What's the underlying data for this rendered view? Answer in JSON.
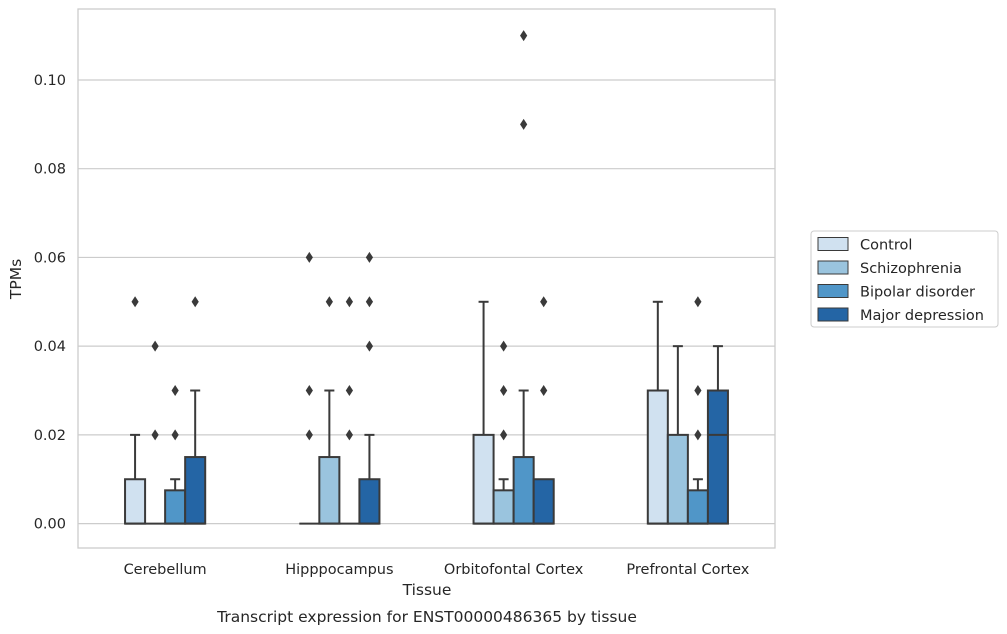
{
  "chart_data": {
    "type": "box",
    "title": "Transcript expression for ENST00000486365 by tissue",
    "xlabel": "Tissue",
    "ylabel": "TPMs",
    "ylim": [
      -0.0055,
      0.116
    ],
    "yticks": [
      "0.00",
      "0.02",
      "0.04",
      "0.06",
      "0.08",
      "0.10"
    ],
    "ytick_values": [
      0,
      0.02,
      0.04,
      0.06,
      0.08,
      0.1
    ],
    "grid": true,
    "legend_position": "right",
    "categories": [
      "Cerebellum",
      "Hipppocampus",
      "Orbitofontal Cortex",
      "Prefrontal Cortex"
    ],
    "series": [
      {
        "name": "Control",
        "color": "#d0e1f0",
        "boxes": [
          {
            "q1": 0,
            "median": 0,
            "q3": 0.01,
            "whisker_low": 0,
            "whisker_high": 0.02,
            "outliers": [
              0.05
            ]
          },
          {
            "q1": 0,
            "median": 0,
            "q3": 0,
            "whisker_low": 0,
            "whisker_high": 0,
            "outliers": [
              0.02,
              0.03,
              0.06
            ]
          },
          {
            "q1": 0,
            "median": 0,
            "q3": 0.02,
            "whisker_low": 0,
            "whisker_high": 0.05,
            "outliers": []
          },
          {
            "q1": 0,
            "median": 0,
            "q3": 0.03,
            "whisker_low": 0,
            "whisker_high": 0.05,
            "outliers": []
          }
        ]
      },
      {
        "name": "Schizophrenia",
        "color": "#9ac4de",
        "boxes": [
          {
            "q1": 0,
            "median": 0,
            "q3": 0,
            "whisker_low": 0,
            "whisker_high": 0,
            "outliers": [
              0.02,
              0.04
            ]
          },
          {
            "q1": 0,
            "median": 0,
            "q3": 0.015,
            "whisker_low": 0,
            "whisker_high": 0.03,
            "outliers": [
              0.05
            ]
          },
          {
            "q1": 0,
            "median": 0,
            "q3": 0.0075,
            "whisker_low": 0,
            "whisker_high": 0.01,
            "outliers": [
              0.02,
              0.03,
              0.04
            ]
          },
          {
            "q1": 0,
            "median": 0,
            "q3": 0.02,
            "whisker_low": 0,
            "whisker_high": 0.04,
            "outliers": []
          }
        ]
      },
      {
        "name": "Bipolar disorder",
        "color": "#5096c8",
        "boxes": [
          {
            "q1": 0,
            "median": 0,
            "q3": 0.0075,
            "whisker_low": 0,
            "whisker_high": 0.01,
            "outliers": [
              0.02,
              0.03
            ]
          },
          {
            "q1": 0,
            "median": 0,
            "q3": 0,
            "whisker_low": 0,
            "whisker_high": 0,
            "outliers": [
              0.02,
              0.03,
              0.05
            ]
          },
          {
            "q1": 0,
            "median": 0,
            "q3": 0.015,
            "whisker_low": 0,
            "whisker_high": 0.03,
            "outliers": [
              0.09,
              0.11
            ]
          },
          {
            "q1": 0,
            "median": 0,
            "q3": 0.0075,
            "whisker_low": 0,
            "whisker_high": 0.01,
            "outliers": [
              0.02,
              0.03,
              0.05
            ]
          }
        ]
      },
      {
        "name": "Major depression",
        "color": "#2465a5",
        "boxes": [
          {
            "q1": 0,
            "median": 0,
            "q3": 0.015,
            "whisker_low": 0,
            "whisker_high": 0.03,
            "outliers": [
              0.05
            ]
          },
          {
            "q1": 0,
            "median": 0,
            "q3": 0.01,
            "whisker_low": 0,
            "whisker_high": 0.02,
            "outliers": [
              0.04,
              0.05,
              0.06
            ]
          },
          {
            "q1": 0,
            "median": 0,
            "q3": 0.01,
            "whisker_low": 0,
            "whisker_high": 0.01,
            "outliers": [
              0.03,
              0.05
            ]
          },
          {
            "q1": 0,
            "median": 0.02,
            "q3": 0.03,
            "whisker_low": 0,
            "whisker_high": 0.04,
            "outliers": []
          }
        ]
      }
    ],
    "style": {
      "grid_color": "#cccccc",
      "spine_color": "#cccccc",
      "line_color": "#3a3a3a",
      "background": "#ffffff"
    }
  }
}
